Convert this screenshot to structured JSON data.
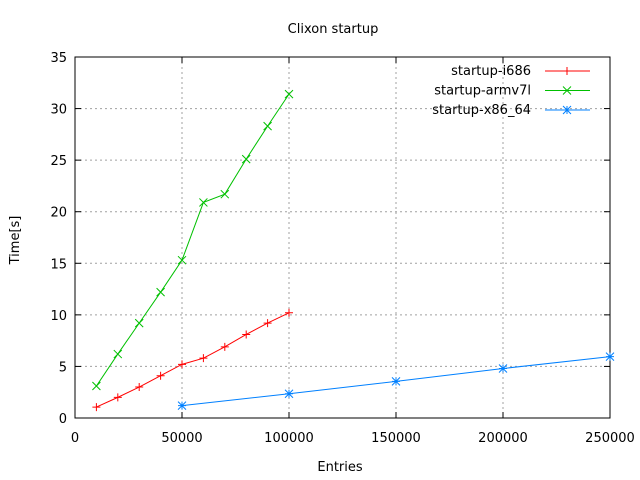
{
  "chart_data": {
    "type": "line",
    "title": "Clixon startup",
    "xlabel": "Entries",
    "ylabel": "Time[s]",
    "xlim": [
      0,
      250000
    ],
    "ylim": [
      0,
      35
    ],
    "xticks": [
      0,
      50000,
      100000,
      150000,
      200000,
      250000
    ],
    "yticks": [
      0,
      5,
      10,
      15,
      20,
      25,
      30,
      35
    ],
    "grid": true,
    "legend_position": "top-right",
    "series": [
      {
        "name": "startup-i686",
        "color": "#ff0000",
        "marker": "plus",
        "x": [
          10000,
          20000,
          30000,
          40000,
          50000,
          60000,
          70000,
          80000,
          90000,
          100000
        ],
        "y": [
          1.06,
          2.0,
          3.0,
          4.1,
          5.2,
          5.8,
          6.9,
          8.1,
          9.2,
          10.2
        ]
      },
      {
        "name": "startup-armv7l",
        "color": "#00c000",
        "marker": "cross",
        "x": [
          10000,
          20000,
          30000,
          40000,
          50000,
          60000,
          70000,
          80000,
          90000,
          100000
        ],
        "y": [
          3.1,
          6.2,
          9.2,
          12.2,
          15.3,
          20.9,
          21.7,
          25.1,
          28.3,
          31.4
        ]
      },
      {
        "name": "startup-x86_64",
        "color": "#0080ff",
        "marker": "star",
        "x": [
          50000,
          100000,
          150000,
          200000,
          250000
        ],
        "y": [
          1.2,
          2.35,
          3.55,
          4.8,
          5.95
        ]
      }
    ]
  }
}
